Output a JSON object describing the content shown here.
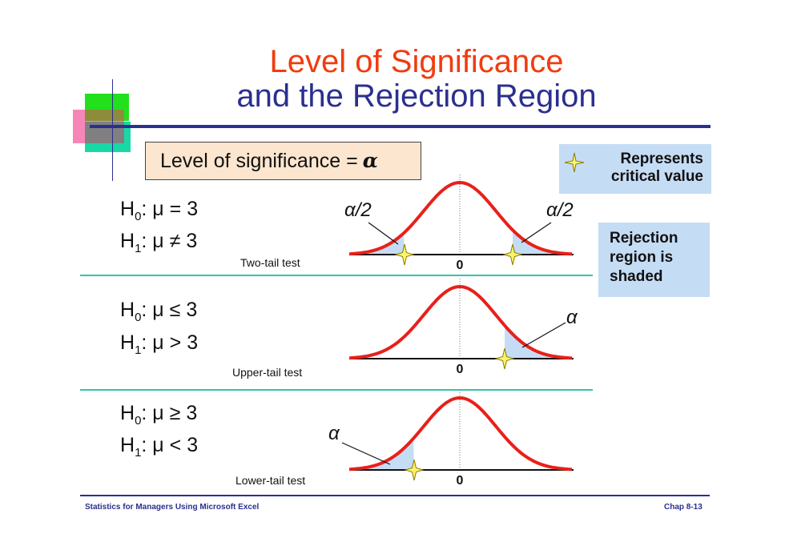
{
  "title": {
    "line1": "Level of Significance",
    "line2": "and the Rejection Region"
  },
  "significance_box": {
    "label": "Level of significance =",
    "symbol": "α"
  },
  "legend": {
    "critical_value_text_line1": "Represents",
    "critical_value_text_line2": "critical value",
    "rejection_line1": "Rejection",
    "rejection_line2": "region is",
    "rejection_line3": "shaded"
  },
  "panels": [
    {
      "h0_prefix": "H",
      "h0_sub": "0",
      "h0_rest": ": μ = 3",
      "h1_prefix": "H",
      "h1_sub": "1",
      "h1_rest": ": μ ≠ 3",
      "test_label": "Two-tail test",
      "left_label": "α/2",
      "right_label": "α/2",
      "zero": "0"
    },
    {
      "h0_prefix": "H",
      "h0_sub": "0",
      "h0_rest": ": μ ≤ 3",
      "h1_prefix": "H",
      "h1_sub": "1",
      "h1_rest": ": μ > 3",
      "test_label": "Upper-tail test",
      "right_label": "α",
      "zero": "0"
    },
    {
      "h0_prefix": "H",
      "h0_sub": "0",
      "h0_rest": ": μ ≥ 3",
      "h1_prefix": "H",
      "h1_sub": "1",
      "h1_rest": ": μ < 3",
      "test_label": "Lower-tail test",
      "left_label": "α",
      "zero": "0"
    }
  ],
  "footer": {
    "left": "Statistics for Managers Using Microsoft Excel",
    "right": "Chap 8-13"
  },
  "colors": {
    "title_orange": "#f03c0f",
    "title_blue": "#2b2f8f",
    "curve_red": "#e8201a",
    "shade_blue": "#c5dcf5",
    "separator_teal": "#33c5a5",
    "star_yellow": "#fff36b"
  }
}
